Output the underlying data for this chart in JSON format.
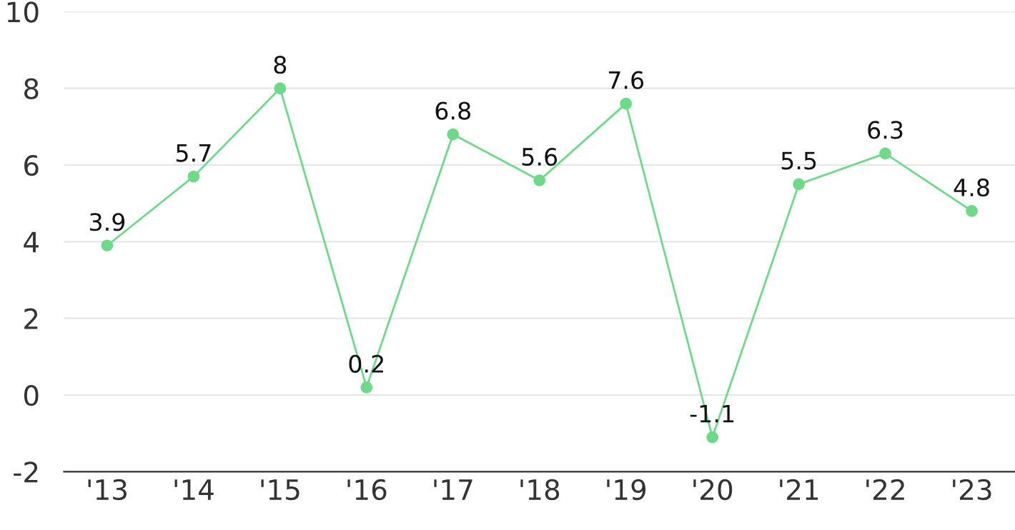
{
  "chart_data": {
    "type": "line",
    "categories": [
      "'13",
      "'14",
      "'15",
      "'16",
      "'17",
      "'18",
      "'19",
      "'20",
      "'21",
      "'22",
      "'23"
    ],
    "series": [
      {
        "color": "#6fd98a",
        "values": [
          3.9,
          5.7,
          8,
          0.2,
          6.8,
          5.6,
          7.6,
          -1.1,
          5.5,
          6.3,
          4.8
        ]
      }
    ],
    "ylim": [
      -2,
      10
    ],
    "yticks": [
      -2,
      0,
      2,
      4,
      6,
      8,
      10
    ],
    "grid": "y",
    "marker": "circle",
    "line_style": "solid",
    "data_labels": true
  }
}
